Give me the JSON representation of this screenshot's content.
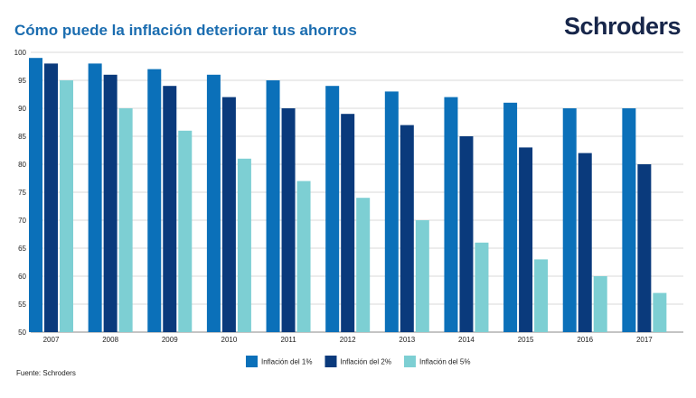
{
  "header": {
    "title": "Cómo puede la inflación deteriorar tus ahorros",
    "logo_text": "Schroders"
  },
  "footer": {
    "source": "Fuente: Schroders"
  },
  "chart_data": {
    "type": "bar",
    "title": "Cómo puede la inflación deteriorar tus ahorros",
    "xlabel": "",
    "ylabel": "",
    "ylim": [
      50,
      100
    ],
    "yticks": [
      100,
      95,
      90,
      85,
      80,
      75,
      70,
      65,
      60,
      55,
      50
    ],
    "grid": true,
    "legend_position": "bottom-center",
    "categories": [
      "2007",
      "2008",
      "2009",
      "2010",
      "2011",
      "2012",
      "2013",
      "2014",
      "2015",
      "2016",
      "2017"
    ],
    "series": [
      {
        "name": "Inflación del 1%",
        "color": "#0b70b9",
        "values": [
          99,
          98,
          97,
          96,
          95,
          94,
          93,
          92,
          91,
          90,
          90
        ]
      },
      {
        "name": "Inflación del 2%",
        "color": "#0a3a7c",
        "values": [
          98,
          96,
          94,
          92,
          90,
          89,
          87,
          85,
          83,
          82,
          80
        ]
      },
      {
        "name": "Inflación del 5%",
        "color": "#7dcfd3",
        "values": [
          95,
          90,
          86,
          81,
          77,
          74,
          70,
          66,
          63,
          60,
          57
        ]
      }
    ]
  }
}
